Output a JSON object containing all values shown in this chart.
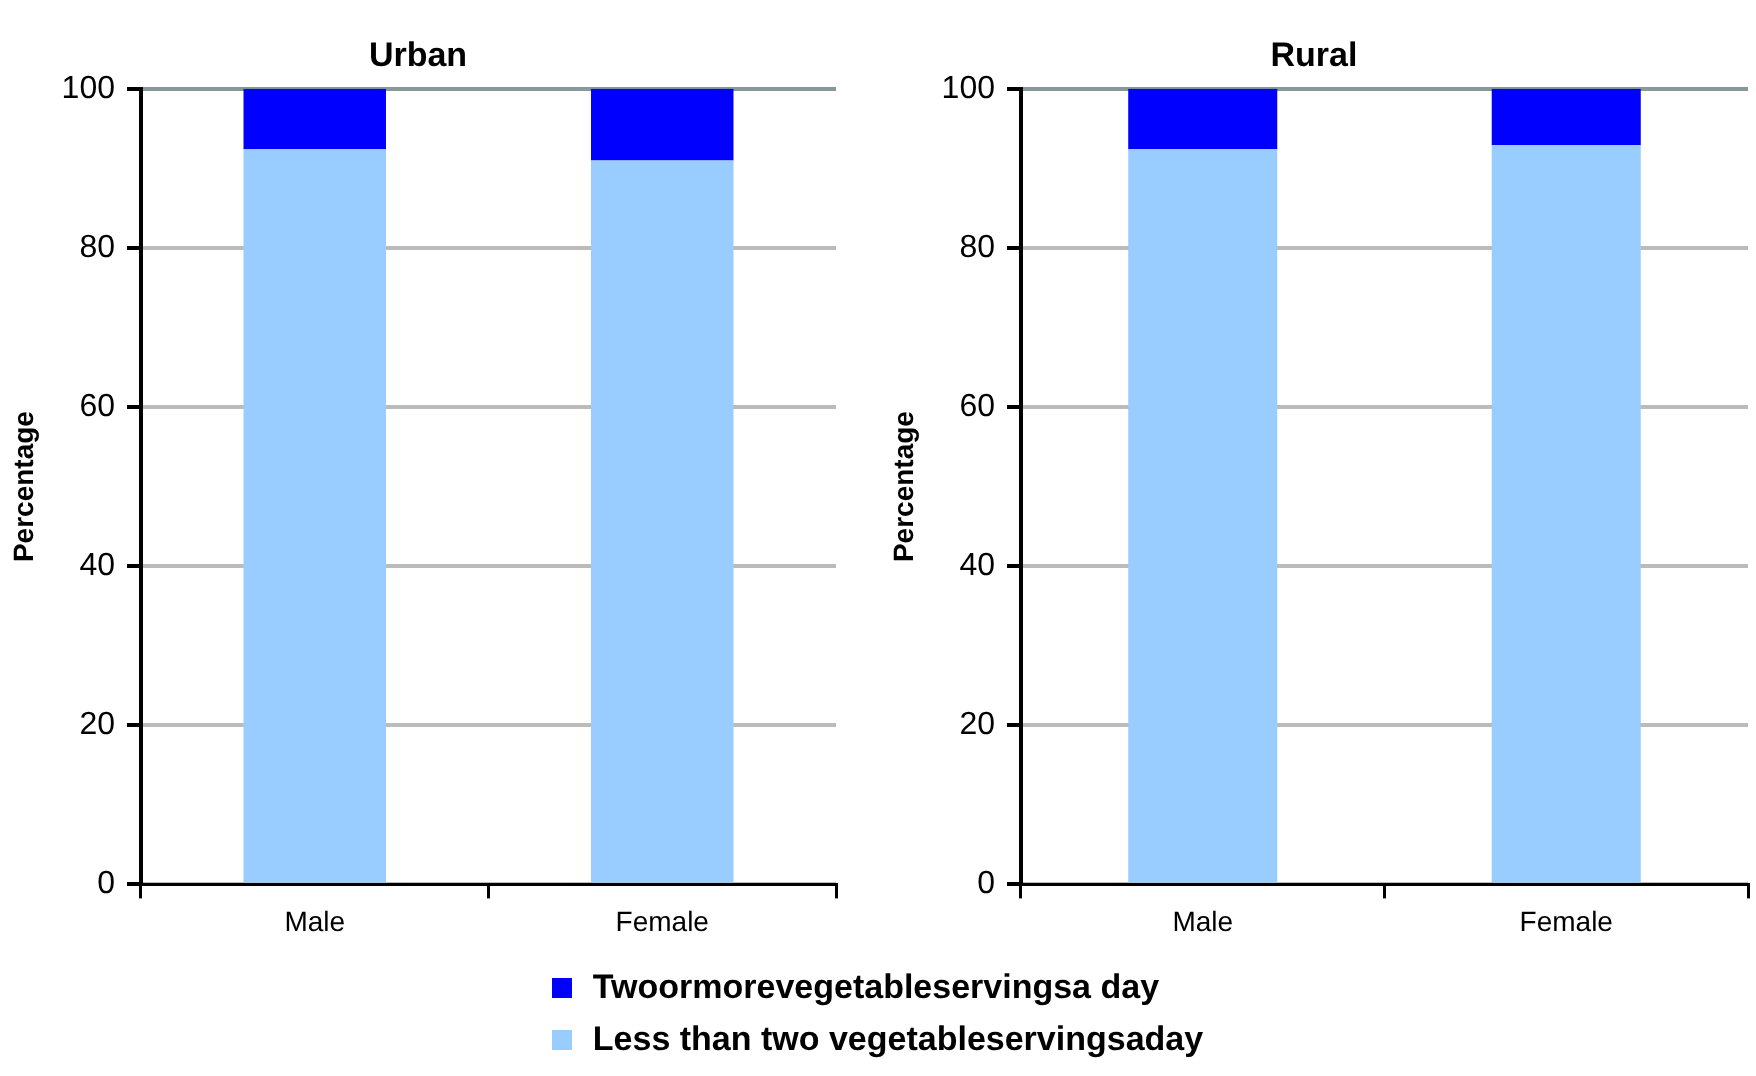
{
  "chart_data": [
    {
      "type": "bar",
      "title": "Urban",
      "ylabel": "Percentage",
      "categories": [
        "Male",
        "Female"
      ],
      "stacked": true,
      "ylim": [
        0,
        100
      ],
      "yticks": [
        0,
        20,
        40,
        60,
        80,
        100
      ],
      "grid": "y",
      "legend": "bottom",
      "series": [
        {
          "name": "Less than two vegetableservingsaday",
          "color": "#99ccff",
          "values": [
            92.4,
            91.0
          ]
        },
        {
          "name": "Twoormorevegetableservingsa day",
          "color": "#0000ff",
          "values": [
            7.6,
            9.0
          ]
        }
      ]
    },
    {
      "type": "bar",
      "title": "Rural",
      "ylabel": "Percentage",
      "categories": [
        "Male",
        "Female"
      ],
      "stacked": true,
      "ylim": [
        0,
        100
      ],
      "yticks": [
        0,
        20,
        40,
        60,
        80,
        100
      ],
      "grid": "y",
      "series": [
        {
          "color": "#99ccff",
          "values": [
            92.4,
            92.9
          ]
        },
        {
          "color": "#0000ff",
          "values": [
            7.6,
            7.1
          ]
        }
      ]
    }
  ]
}
